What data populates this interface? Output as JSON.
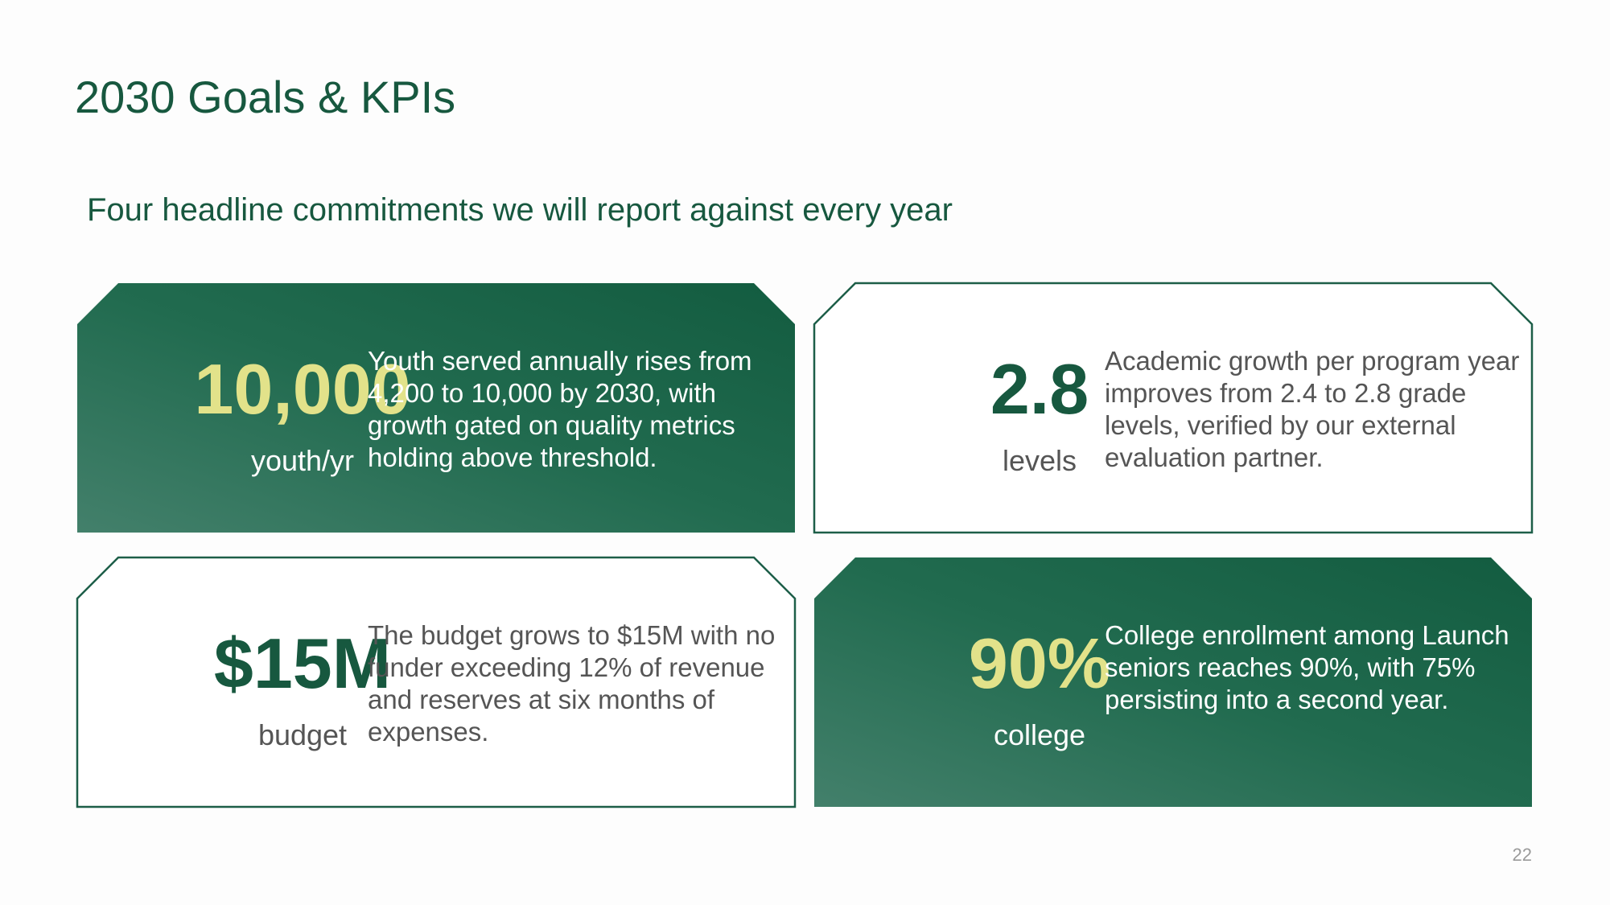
{
  "header": {
    "title": "2030 Goals & KPIs",
    "subtitle": "Four headline commitments we will report against every year"
  },
  "cards": [
    {
      "value": "10,000",
      "unit": "youth/yr",
      "description": "Youth served annually rises from 4,200 to 10,000 by 2030, with growth gated on quality metrics holding above threshold."
    },
    {
      "value": "2.8",
      "unit": "levels",
      "description": "Academic growth per program year improves from 2.4 to 2.8 grade levels, verified by our external evaluation partner."
    },
    {
      "value": "$15M",
      "unit": "budget",
      "description": "The budget grows to $15M with no funder exceeding 12% of revenue and reserves at six months of expenses."
    },
    {
      "value": "90%",
      "unit": "college",
      "description": "College enrollment among Launch seniors reaches 90%, with 75% persisting into a second year."
    }
  ],
  "footer": {
    "page_number": "22"
  }
}
